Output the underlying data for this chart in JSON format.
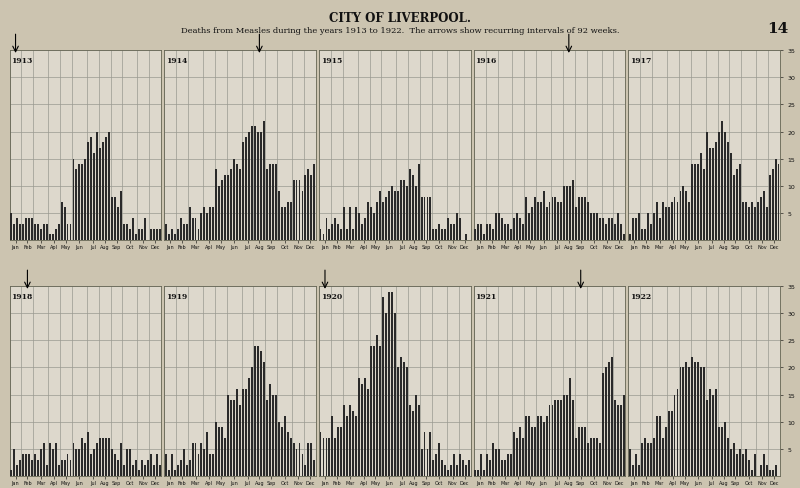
{
  "title": "CITY OF LIVERPOOL.",
  "subtitle": "Deaths from Measles during the years 1913 to 1922.  The arrows show recurring intervals of 92 weeks.",
  "page_number": "14",
  "fig_background": "#ccc4b0",
  "panel_background": "#ddd8cc",
  "bar_color": "#2a2a2a",
  "grid_color": "#999990",
  "text_color": "#111111",
  "months": [
    "Jan",
    "Feb",
    "Mar",
    "Apl",
    "May",
    "Jun",
    "Jul",
    "Aug",
    "Sep",
    "Oct",
    "Nov",
    "Dec"
  ],
  "ylim": [
    0,
    35
  ],
  "yticks": [
    5,
    10,
    15,
    20,
    25,
    30,
    35
  ],
  "years": [
    "1913",
    "1914",
    "1915",
    "1916",
    "1917",
    "1918",
    "1919",
    "1920",
    "1921",
    "1922"
  ],
  "arrow_month_positions": {
    "1913": 0,
    "1914": 7,
    "1916": 7,
    "1918": 1,
    "1920": 0,
    "1921": 8
  },
  "monthly_weekly": {
    "1913": [
      3,
      4,
      4,
      3,
      5,
      14,
      18,
      19,
      7,
      3,
      2,
      2
    ],
    "1914": [
      1,
      2,
      4,
      6,
      11,
      14,
      19,
      22,
      14,
      7,
      11,
      13
    ],
    "1915": [
      2,
      3,
      4,
      5,
      7,
      8,
      10,
      12,
      7,
      4,
      3,
      2
    ],
    "1916": [
      2,
      3,
      4,
      5,
      6,
      7,
      8,
      10,
      8,
      5,
      4,
      3
    ],
    "1917": [
      3,
      4,
      5,
      7,
      9,
      14,
      18,
      20,
      14,
      7,
      7,
      14
    ],
    "1918": [
      3,
      3,
      4,
      4,
      5,
      5,
      6,
      7,
      5,
      3,
      3,
      2
    ],
    "1919": [
      2,
      3,
      4,
      6,
      9,
      14,
      18,
      22,
      15,
      9,
      6,
      4
    ],
    "1920": [
      7,
      9,
      13,
      18,
      24,
      32,
      22,
      13,
      7,
      4,
      3,
      2
    ],
    "1921": [
      3,
      4,
      5,
      7,
      9,
      11,
      14,
      16,
      9,
      7,
      20,
      13
    ],
    "1922": [
      4,
      6,
      9,
      14,
      20,
      22,
      15,
      9,
      5,
      3,
      2,
      1
    ]
  }
}
